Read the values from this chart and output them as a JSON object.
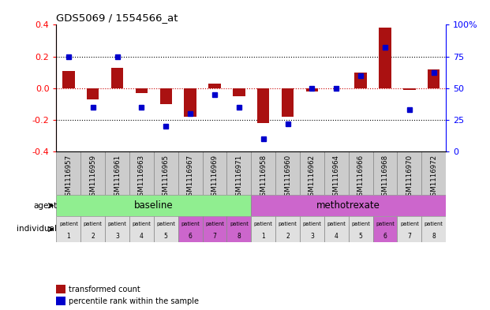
{
  "title": "GDS5069 / 1554566_at",
  "samples": [
    "GSM1116957",
    "GSM1116959",
    "GSM1116961",
    "GSM1116963",
    "GSM1116965",
    "GSM1116967",
    "GSM1116969",
    "GSM1116971",
    "GSM1116958",
    "GSM1116960",
    "GSM1116962",
    "GSM1116964",
    "GSM1116966",
    "GSM1116968",
    "GSM1116970",
    "GSM1116972"
  ],
  "transformed_count": [
    0.11,
    -0.07,
    0.13,
    -0.03,
    -0.1,
    -0.18,
    0.03,
    -0.05,
    -0.22,
    -0.18,
    -0.02,
    0.0,
    0.1,
    0.38,
    -0.01,
    0.12
  ],
  "percentile_rank": [
    75,
    35,
    75,
    35,
    20,
    30,
    45,
    35,
    10,
    22,
    50,
    50,
    60,
    82,
    33,
    62
  ],
  "agent_colors": [
    "#90ee90",
    "#cc66cc"
  ],
  "individual_colors_base": [
    "#e0e0e0",
    "#e0e0e0",
    "#e0e0e0",
    "#e0e0e0",
    "#e0e0e0",
    "#cc66cc",
    "#cc66cc",
    "#cc66cc"
  ],
  "individual_colors_meth": [
    "#e0e0e0",
    "#e0e0e0",
    "#e0e0e0",
    "#e0e0e0",
    "#e0e0e0",
    "#cc66cc",
    "#e0e0e0",
    "#e0e0e0"
  ],
  "bar_color": "#aa1111",
  "dot_color": "#0000cc",
  "ylim": [
    -0.4,
    0.4
  ],
  "y2lim": [
    0,
    100
  ],
  "yticks": [
    -0.4,
    -0.2,
    0.0,
    0.2,
    0.4
  ],
  "y2ticks": [
    0,
    25,
    50,
    75,
    100
  ],
  "legend_items": [
    "transformed count",
    "percentile rank within the sample"
  ],
  "legend_colors": [
    "#aa1111",
    "#0000cc"
  ],
  "gsm_bg": "#cccccc"
}
